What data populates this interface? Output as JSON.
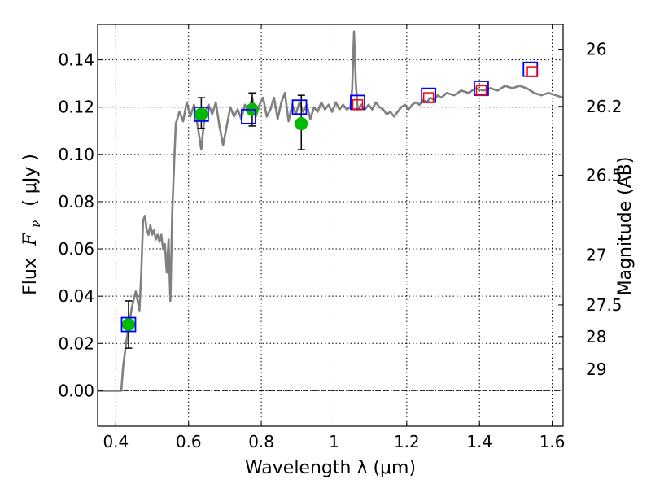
{
  "chart_data": {
    "type": "line",
    "xlabel": "Wavelength  λ (μm)",
    "ylabel": "Flux  F_ν  ( μJy )",
    "ylabel_parts": {
      "prefix": "Flux",
      "symbol": "F",
      "subscript": "ν",
      "unit": "( μJy )"
    },
    "y2label": "Magnitude (AB)",
    "xlim": [
      0.35,
      1.63
    ],
    "ylim": [
      -0.015,
      0.155
    ],
    "grid": true,
    "x_ticks": [
      {
        "value": 0.4,
        "label": "0.4"
      },
      {
        "value": 0.6,
        "label": "0.6"
      },
      {
        "value": 0.8,
        "label": "0.8"
      },
      {
        "value": 1.0,
        "label": "1"
      },
      {
        "value": 1.2,
        "label": "1.2"
      },
      {
        "value": 1.4,
        "label": "1.4"
      },
      {
        "value": 1.6,
        "label": "1.6"
      }
    ],
    "y_ticks": [
      {
        "value": 0.0,
        "label": "0.00"
      },
      {
        "value": 0.02,
        "label": "0.02"
      },
      {
        "value": 0.04,
        "label": "0.04"
      },
      {
        "value": 0.06,
        "label": "0.06"
      },
      {
        "value": 0.08,
        "label": "0.08"
      },
      {
        "value": 0.1,
        "label": "0.10"
      },
      {
        "value": 0.12,
        "label": "0.12"
      },
      {
        "value": 0.14,
        "label": "0.14"
      }
    ],
    "y2_ticks": [
      {
        "flux": 0.1445,
        "label": "26"
      },
      {
        "flux": 0.1203,
        "label": "26.2"
      },
      {
        "flux": 0.0912,
        "label": "26.5"
      },
      {
        "flux": 0.0575,
        "label": "27"
      },
      {
        "flux": 0.0363,
        "label": "27.5"
      },
      {
        "flux": 0.0229,
        "label": "28"
      },
      {
        "flux": 0.0091,
        "label": "29"
      }
    ],
    "series": [
      {
        "type": "line",
        "color": "#808080",
        "points": [
          [
            0.35,
            0.0
          ],
          [
            0.4,
            0.0
          ],
          [
            0.415,
            0.0
          ],
          [
            0.42,
            0.01
          ],
          [
            0.43,
            0.022
          ],
          [
            0.445,
            0.036
          ],
          [
            0.455,
            0.042
          ],
          [
            0.465,
            0.034
          ],
          [
            0.47,
            0.05
          ],
          [
            0.475,
            0.072
          ],
          [
            0.48,
            0.074
          ],
          [
            0.485,
            0.068
          ],
          [
            0.49,
            0.066
          ],
          [
            0.495,
            0.07
          ],
          [
            0.5,
            0.066
          ],
          [
            0.505,
            0.068
          ],
          [
            0.51,
            0.064
          ],
          [
            0.515,
            0.066
          ],
          [
            0.52,
            0.063
          ],
          [
            0.525,
            0.066
          ],
          [
            0.53,
            0.06
          ],
          [
            0.535,
            0.062
          ],
          [
            0.54,
            0.05
          ],
          [
            0.545,
            0.064
          ],
          [
            0.55,
            0.038
          ],
          [
            0.555,
            0.075
          ],
          [
            0.56,
            0.095
          ],
          [
            0.565,
            0.113
          ],
          [
            0.575,
            0.118
          ],
          [
            0.585,
            0.114
          ],
          [
            0.595,
            0.122
          ],
          [
            0.605,
            0.116
          ],
          [
            0.615,
            0.121
          ],
          [
            0.625,
            0.112
          ],
          [
            0.635,
            0.102
          ],
          [
            0.645,
            0.118
          ],
          [
            0.655,
            0.121
          ],
          [
            0.665,
            0.117
          ],
          [
            0.675,
            0.122
          ],
          [
            0.685,
            0.112
          ],
          [
            0.695,
            0.104
          ],
          [
            0.705,
            0.112
          ],
          [
            0.715,
            0.12
          ],
          [
            0.725,
            0.116
          ],
          [
            0.735,
            0.119
          ],
          [
            0.745,
            0.115
          ],
          [
            0.755,
            0.121
          ],
          [
            0.765,
            0.118
          ],
          [
            0.775,
            0.124
          ],
          [
            0.785,
            0.116
          ],
          [
            0.795,
            0.121
          ],
          [
            0.805,
            0.124
          ],
          [
            0.815,
            0.116
          ],
          [
            0.825,
            0.119
          ],
          [
            0.835,
            0.124
          ],
          [
            0.845,
            0.115
          ],
          [
            0.855,
            0.122
          ],
          [
            0.865,
            0.126
          ],
          [
            0.875,
            0.114
          ],
          [
            0.885,
            0.121
          ],
          [
            0.895,
            0.117
          ],
          [
            0.905,
            0.122
          ],
          [
            0.915,
            0.118
          ],
          [
            0.925,
            0.121
          ],
          [
            0.935,
            0.115
          ],
          [
            0.945,
            0.12
          ],
          [
            0.955,
            0.118
          ],
          [
            0.965,
            0.122
          ],
          [
            0.975,
            0.119
          ],
          [
            0.985,
            0.121
          ],
          [
            0.995,
            0.118
          ],
          [
            1.005,
            0.122
          ],
          [
            1.015,
            0.119
          ],
          [
            1.025,
            0.121
          ],
          [
            1.035,
            0.119
          ],
          [
            1.045,
            0.12
          ],
          [
            1.05,
            0.128
          ],
          [
            1.055,
            0.152
          ],
          [
            1.06,
            0.13
          ],
          [
            1.065,
            0.119
          ],
          [
            1.075,
            0.121
          ],
          [
            1.085,
            0.119
          ],
          [
            1.095,
            0.121
          ],
          [
            1.105,
            0.119
          ],
          [
            1.115,
            0.122
          ],
          [
            1.125,
            0.12
          ],
          [
            1.135,
            0.119
          ],
          [
            1.145,
            0.117
          ],
          [
            1.155,
            0.118
          ],
          [
            1.165,
            0.116
          ],
          [
            1.175,
            0.118
          ],
          [
            1.185,
            0.12
          ],
          [
            1.195,
            0.121
          ],
          [
            1.205,
            0.119
          ],
          [
            1.215,
            0.121
          ],
          [
            1.225,
            0.122
          ],
          [
            1.235,
            0.121
          ],
          [
            1.245,
            0.123
          ],
          [
            1.255,
            0.122
          ],
          [
            1.265,
            0.124
          ],
          [
            1.275,
            0.123
          ],
          [
            1.285,
            0.125
          ],
          [
            1.295,
            0.124
          ],
          [
            1.31,
            0.126
          ],
          [
            1.33,
            0.125
          ],
          [
            1.35,
            0.127
          ],
          [
            1.37,
            0.126
          ],
          [
            1.39,
            0.128
          ],
          [
            1.41,
            0.127
          ],
          [
            1.43,
            0.128
          ],
          [
            1.45,
            0.127
          ],
          [
            1.47,
            0.129
          ],
          [
            1.49,
            0.128
          ],
          [
            1.51,
            0.129
          ],
          [
            1.53,
            0.128
          ],
          [
            1.55,
            0.126
          ],
          [
            1.57,
            0.125
          ],
          [
            1.59,
            0.126
          ],
          [
            1.61,
            0.125
          ],
          [
            1.63,
            0.124
          ]
        ]
      },
      {
        "type": "errorbar",
        "color": "#000000",
        "points": [
          {
            "x": 0.435,
            "y": 0.028,
            "ylow": 0.018,
            "yhigh": 0.038
          },
          {
            "x": 0.635,
            "y": 0.117,
            "ylow": 0.111,
            "yhigh": 0.124
          },
          {
            "x": 0.775,
            "y": 0.119,
            "ylow": 0.112,
            "yhigh": 0.126
          },
          {
            "x": 0.91,
            "y": 0.113,
            "ylow": 0.102,
            "yhigh": 0.125
          }
        ]
      },
      {
        "type": "scatter",
        "marker": "circle",
        "color": "#00bb00",
        "points": [
          [
            0.435,
            0.028
          ],
          [
            0.635,
            0.117
          ],
          [
            0.775,
            0.119
          ],
          [
            0.91,
            0.113
          ]
        ]
      },
      {
        "type": "scatter",
        "marker": "open-square",
        "color": "#0000ff",
        "points": [
          [
            0.435,
            0.028
          ],
          [
            0.635,
            0.117
          ],
          [
            0.765,
            0.116
          ],
          [
            0.905,
            0.12
          ],
          [
            1.065,
            0.122
          ],
          [
            1.26,
            0.125
          ],
          [
            1.405,
            0.128
          ],
          [
            1.54,
            0.136
          ]
        ]
      },
      {
        "type": "scatter",
        "marker": "open-square-small",
        "color": "#ff0000",
        "points": [
          [
            1.065,
            0.121
          ],
          [
            1.26,
            0.124
          ],
          [
            1.405,
            0.127
          ],
          [
            1.545,
            0.135
          ]
        ]
      }
    ]
  }
}
